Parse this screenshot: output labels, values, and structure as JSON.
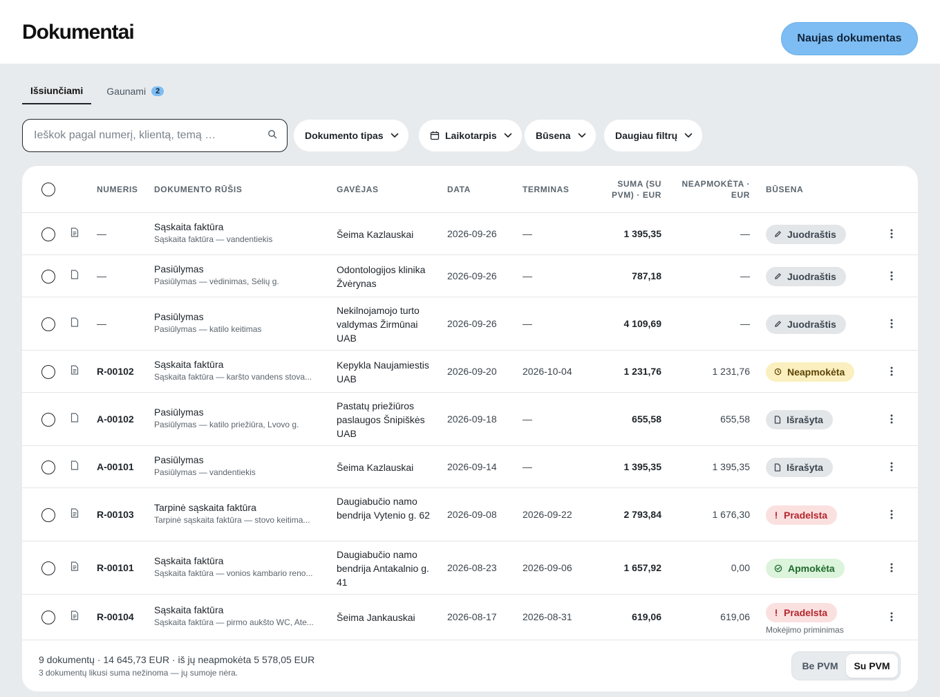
{
  "header": {
    "title": "Dokumentai",
    "new_button": "Naujas dokumentas"
  },
  "tabs": [
    {
      "label": "Išsiunčiami",
      "active": true
    },
    {
      "label": "Gaunami",
      "badge": "2",
      "active": false
    }
  ],
  "search": {
    "placeholder": "Ieškok pagal numerį, klientą, temą …",
    "value": ""
  },
  "filters": {
    "doc_type": "Dokumento tipas",
    "period": "Laikotarpis",
    "status": "Būsena",
    "more": "Daugiau filtrų"
  },
  "table": {
    "columns": {
      "number": "NUMERIS",
      "kind": "DOKUMENTO RŪŠIS",
      "recipient": "GAVĖJAS",
      "date": "DATA",
      "term": "TERMINAS",
      "sum": "SUMA (SU PVM) · EUR",
      "unpaid": "NEAPMOKĖTA · EUR",
      "status": "BŪSENA"
    },
    "rows": [
      {
        "number": "—",
        "type": "Sąskaita faktūra",
        "desc": "Sąskaita faktūra — vandentiekis",
        "recipient": "Šeima Kazlauskai",
        "date": "2026-09-26",
        "term": "—",
        "sum": "1 395,35",
        "unpaid": "—",
        "status": "Juodraštis",
        "status_kind": "draft"
      },
      {
        "number": "—",
        "type": "Pasiūlymas",
        "desc": "Pasiūlymas — vėdinimas, Sėlių g.",
        "recipient": "Odontologijos klinika Žvėrynas",
        "date": "2026-09-26",
        "term": "—",
        "sum": "787,18",
        "unpaid": "—",
        "status": "Juodraštis",
        "status_kind": "draft"
      },
      {
        "number": "—",
        "type": "Pasiūlymas",
        "desc": "Pasiūlymas — katilo keitimas",
        "recipient": "Nekilnojamojo turto valdymas Žirmūnai UAB",
        "date": "2026-09-26",
        "term": "—",
        "sum": "4 109,69",
        "unpaid": "—",
        "status": "Juodraštis",
        "status_kind": "draft"
      },
      {
        "number": "R-00102",
        "type": "Sąskaita faktūra",
        "desc": "Sąskaita faktūra — karšto vandens stova...",
        "recipient": "Kepykla Naujamiestis UAB",
        "date": "2026-09-20",
        "term": "2026-10-04",
        "sum": "1 231,76",
        "unpaid": "1 231,76",
        "status": "Neapmokėta",
        "status_kind": "unpaid"
      },
      {
        "number": "A-00102",
        "type": "Pasiūlymas",
        "desc": "Pasiūlymas — katilo priežiūra, Lvovo g.",
        "recipient": "Pastatų priežiūros paslaugos Šnipiškės UAB",
        "date": "2026-09-18",
        "term": "—",
        "sum": "655,58",
        "unpaid": "655,58",
        "status": "Išrašyta",
        "status_kind": "issued"
      },
      {
        "number": "A-00101",
        "type": "Pasiūlymas",
        "desc": "Pasiūlymas — vandentiekis",
        "recipient": "Šeima Kazlauskai",
        "date": "2026-09-14",
        "term": "—",
        "sum": "1 395,35",
        "unpaid": "1 395,35",
        "status": "Išrašyta",
        "status_kind": "issued"
      },
      {
        "number": "R-00103",
        "type": "Tarpinė sąskaita faktūra",
        "desc": "Tarpinė sąskaita faktūra — stovo keitima...",
        "recipient": "Daugiabučio namo bendrija Vytenio g. 62",
        "date": "2026-09-08",
        "term": "2026-09-22",
        "sum": "2 793,84",
        "unpaid": "1 676,30",
        "status": "Pradelsta",
        "status_kind": "overdue"
      },
      {
        "number": "R-00101",
        "type": "Sąskaita faktūra",
        "desc": "Sąskaita faktūra — vonios kambario reno...",
        "recipient": "Daugiabučio namo bendrija Antakalnio g. 41",
        "date": "2026-08-23",
        "term": "2026-09-06",
        "sum": "1 657,92",
        "unpaid": "0,00",
        "status": "Apmokėta",
        "status_kind": "paid"
      },
      {
        "number": "R-00104",
        "type": "Sąskaita faktūra",
        "desc": "Sąskaita faktūra — pirmo aukšto WC, Ate...",
        "recipient": "Šeima Jankauskai",
        "date": "2026-08-17",
        "term": "2026-08-31",
        "sum": "619,06",
        "unpaid": "619,06",
        "status": "Pradelsta",
        "status_kind": "overdue",
        "note": "Mokėjimo priminimas"
      }
    ]
  },
  "footer": {
    "summary": "9 dokumentų · 14 645,73 EUR · iš jų neapmokėta 5 578,05 EUR",
    "sub": "3 dokumentų likusi suma nežinoma — jų sumoje nėra.",
    "vat_off": "Be PVM",
    "vat_on": "Su PVM"
  },
  "colors": {
    "accent": "#7ebdf3",
    "background": "#e8ebee"
  }
}
